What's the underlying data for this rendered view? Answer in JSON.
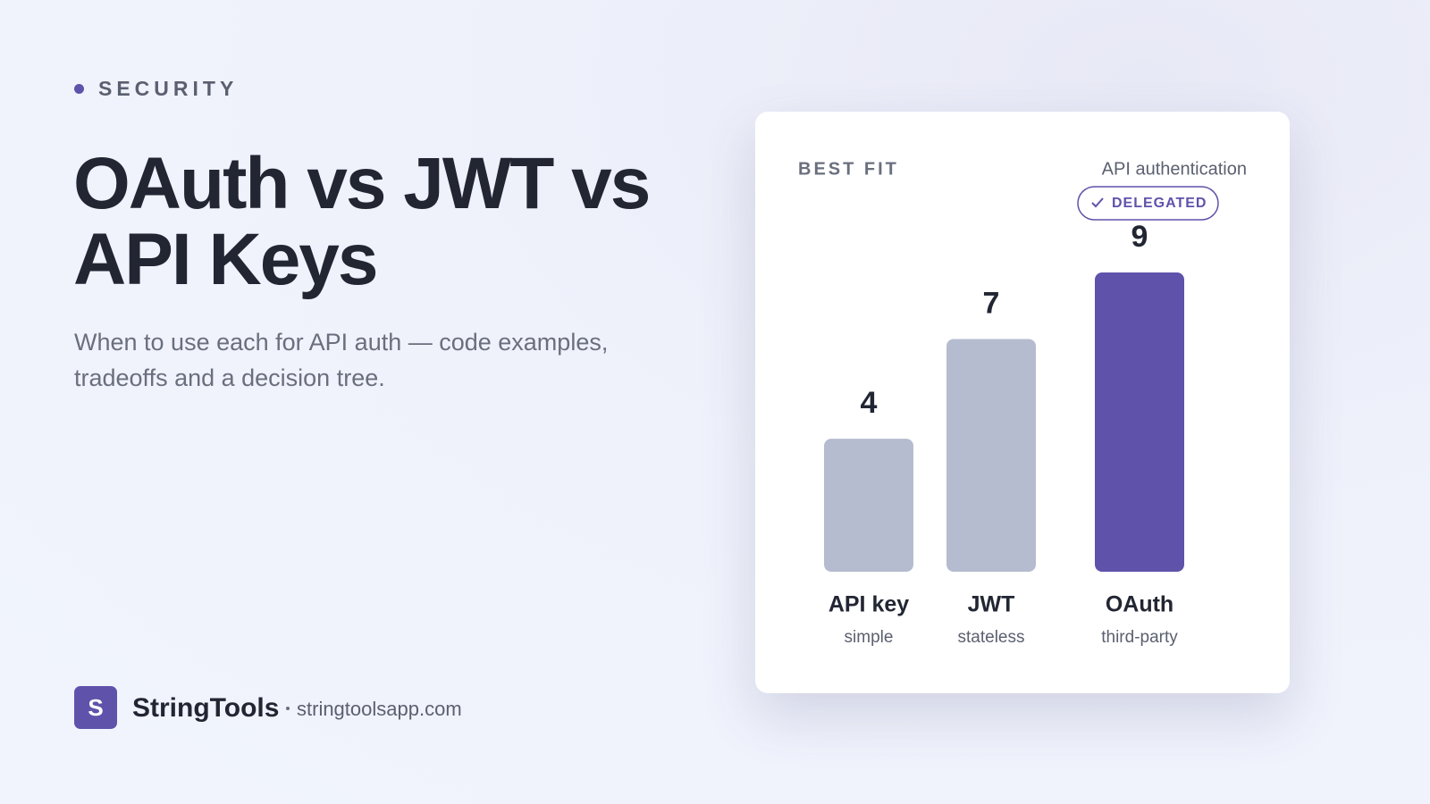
{
  "eyebrow": "SECURITY",
  "title_lines": [
    "OAuth vs JWT vs",
    "API Keys"
  ],
  "subtitle_lines": [
    "When to use each for API auth — code examples,",
    "tradeoffs and a decision tree."
  ],
  "brand": {
    "logo_letter": "S",
    "name": "StringTools",
    "domain": "stringtoolsapp.com"
  },
  "chart_data": {
    "type": "bar",
    "title": "BEST FIT",
    "subtitle": "API authentication",
    "badge": "DELEGATED",
    "categories": [
      "API key",
      "JWT",
      "OAuth"
    ],
    "category_notes": [
      "simple",
      "stateless",
      "third-party"
    ],
    "values": [
      4,
      7,
      9
    ],
    "colors": [
      "#b5bccf",
      "#b5bccf",
      "#5f52ab"
    ]
  }
}
